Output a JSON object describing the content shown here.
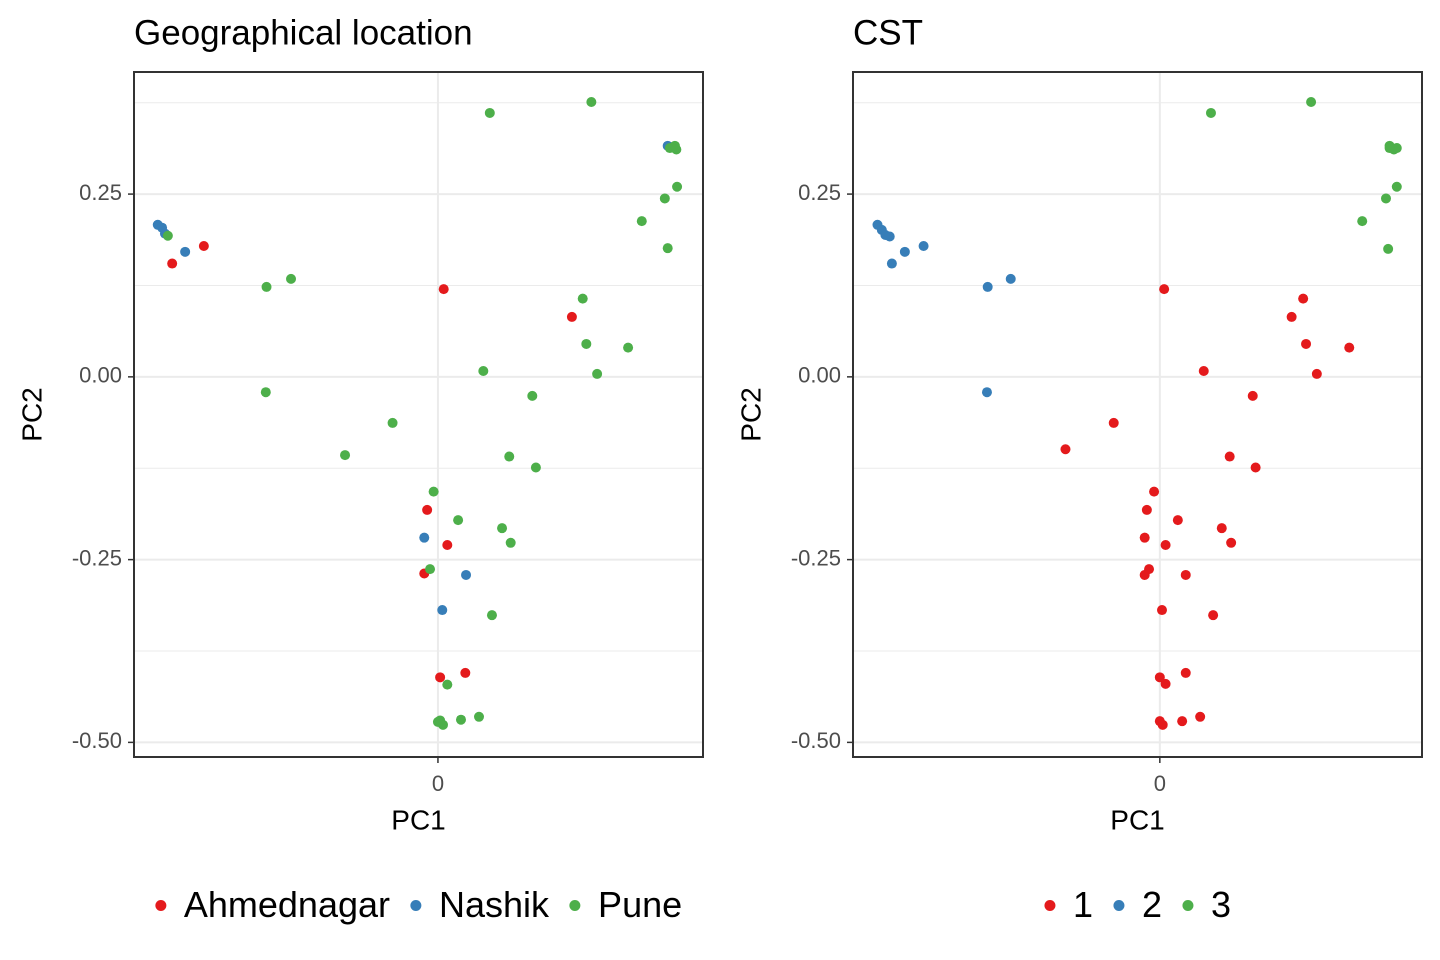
{
  "chart_data": [
    {
      "type": "scatter",
      "title": "Geographical location",
      "x_label": "PC1",
      "y_label": "PC2",
      "xlim": [
        -0.422,
        0.368
      ],
      "ylim": [
        -0.52,
        0.417
      ],
      "xticks": [
        0
      ],
      "yticks": [
        {
          "value": -0.5,
          "label": "-0.50"
        },
        -0.25,
        {
          "value": 0,
          "label": "0.00"
        },
        0.25
      ],
      "y_minor_gridlines": [
        -0.375,
        -0.125,
        0.125,
        0.375
      ],
      "grid": true,
      "legend": "bottom",
      "series": [
        {
          "name": "Ahmednagar",
          "color": "#e41a1c",
          "x": [
            -0.369,
            -0.325,
            0.008,
            0.186,
            -0.015,
            0.013,
            -0.019,
            0.003,
            0.038
          ],
          "values": [
            0.155,
            0.179,
            0.12,
            0.082,
            -0.182,
            -0.23,
            -0.269,
            -0.411,
            -0.405
          ]
        },
        {
          "name": "Nashik",
          "color": "#377eb8",
          "x": [
            -0.389,
            -0.383,
            -0.379,
            -0.351,
            0.319,
            -0.019,
            0.039,
            0.006
          ],
          "values": [
            0.208,
            0.204,
            0.196,
            0.171,
            0.316,
            -0.22,
            -0.271,
            -0.319
          ]
        },
        {
          "name": "Pune",
          "color": "#4daf4a",
          "x": [
            0.072,
            0.213,
            0.322,
            0.331,
            0.329,
            0.332,
            0.315,
            0.283,
            0.319,
            -0.375,
            -0.238,
            -0.204,
            0.201,
            0.206,
            0.264,
            0.221,
            0.063,
            0.131,
            -0.239,
            -0.063,
            -0.129,
            -0.006,
            0.028,
            0.099,
            0.136,
            0.089,
            0.101,
            -0.011,
            0.075,
            0.013,
            0.003,
            0.007,
            0.032,
            0.057,
            0.0
          ],
          "values": [
            0.361,
            0.376,
            0.313,
            0.311,
            0.316,
            0.26,
            0.244,
            0.213,
            0.176,
            0.193,
            0.123,
            0.134,
            0.107,
            0.045,
            0.04,
            0.004,
            0.008,
            -0.026,
            -0.021,
            -0.063,
            -0.107,
            -0.157,
            -0.196,
            -0.109,
            -0.124,
            -0.207,
            -0.227,
            -0.263,
            -0.326,
            -0.421,
            -0.47,
            -0.476,
            -0.469,
            -0.465,
            -0.472
          ]
        }
      ]
    },
    {
      "type": "scatter",
      "title": "CST",
      "x_label": "PC1",
      "y_label": "PC2",
      "xlim": [
        -0.426,
        0.364
      ],
      "ylim": [
        -0.52,
        0.417
      ],
      "xticks": [
        0
      ],
      "yticks": [
        {
          "value": -0.5,
          "label": "-0.50"
        },
        -0.25,
        {
          "value": 0,
          "label": "0.00"
        },
        0.25
      ],
      "y_minor_gridlines": [
        -0.375,
        -0.125,
        0.125,
        0.375
      ],
      "grid": true,
      "legend": "bottom",
      "series": [
        {
          "name": "1",
          "color": "#e41a1c",
          "x": [
            0.006,
            0.061,
            0.129,
            0.183,
            0.199,
            0.203,
            0.263,
            0.218,
            -0.131,
            -0.064,
            -0.008,
            -0.018,
            0.025,
            -0.021,
            0.008,
            0.097,
            0.133,
            0.086,
            0.099,
            -0.015,
            -0.021,
            0.036,
            0.003,
            0.074,
            0.0,
            0.008,
            0.036,
            0.056,
            0.031,
            0.0,
            0.004
          ],
          "values": [
            0.12,
            0.008,
            -0.026,
            0.082,
            0.107,
            0.045,
            0.04,
            0.004,
            -0.099,
            -0.063,
            -0.157,
            -0.182,
            -0.196,
            -0.22,
            -0.23,
            -0.109,
            -0.124,
            -0.207,
            -0.227,
            -0.263,
            -0.271,
            -0.271,
            -0.319,
            -0.326,
            -0.411,
            -0.42,
            -0.405,
            -0.465,
            -0.471,
            -0.471,
            -0.476
          ]
        },
        {
          "name": "2",
          "color": "#377eb8",
          "x": [
            -0.392,
            -0.386,
            -0.381,
            -0.375,
            -0.372,
            -0.354,
            -0.328,
            -0.239,
            -0.207,
            -0.24
          ],
          "values": [
            0.208,
            0.201,
            0.194,
            0.192,
            0.155,
            0.171,
            0.179,
            0.123,
            0.134,
            -0.021
          ]
        },
        {
          "name": "3",
          "color": "#4daf4a",
          "x": [
            0.071,
            0.21,
            0.319,
            0.325,
            0.329,
            0.319,
            0.329,
            0.314,
            0.281,
            0.317
          ],
          "values": [
            0.361,
            0.376,
            0.316,
            0.311,
            0.313,
            0.313,
            0.26,
            0.244,
            0.213,
            0.175
          ]
        }
      ]
    }
  ]
}
